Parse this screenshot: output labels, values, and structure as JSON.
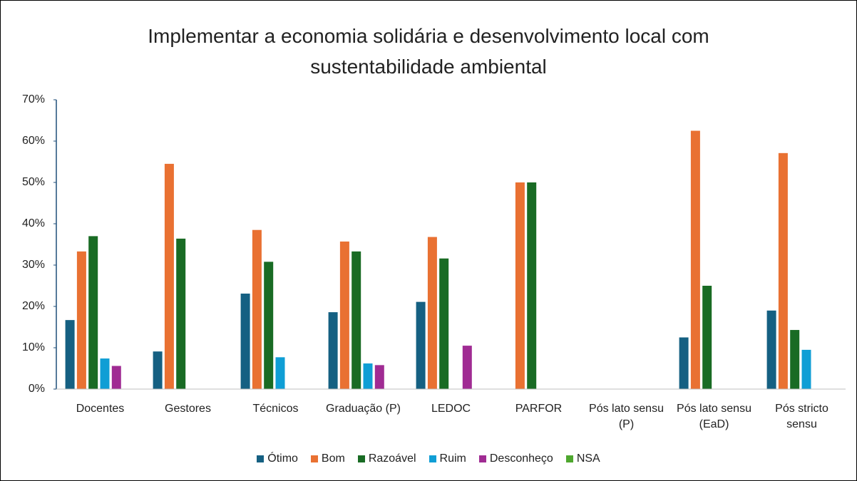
{
  "chart_data": {
    "type": "bar",
    "title": "Implementar a economia solidária e desenvolvimento local com sustentabilidade ambiental",
    "categories": [
      "Docentes",
      "Gestores",
      "Técnicos",
      "Graduação (P)",
      "LEDOC",
      "PARFOR",
      "Pós lato sensu (P)",
      "Pós lato sensu (EaD)",
      "Pós stricto sensu"
    ],
    "series": [
      {
        "name": "Ótimo",
        "color": "#156082",
        "values": [
          16.7,
          9.1,
          23.1,
          18.6,
          21.1,
          0,
          0,
          12.5,
          19.0
        ]
      },
      {
        "name": "Bom",
        "color": "#e97132",
        "values": [
          33.3,
          54.5,
          38.5,
          35.7,
          36.8,
          50,
          0,
          62.5,
          57.1
        ]
      },
      {
        "name": "Razoável",
        "color": "#196b24",
        "values": [
          37.0,
          36.4,
          30.8,
          33.3,
          31.6,
          50,
          0,
          25.0,
          14.3
        ]
      },
      {
        "name": "Ruim",
        "color": "#0f9ed5",
        "values": [
          7.4,
          0,
          7.7,
          6.2,
          0,
          0,
          0,
          0,
          9.5
        ]
      },
      {
        "name": "Desconheço",
        "color": "#a02b93",
        "values": [
          5.6,
          0,
          0,
          5.8,
          10.5,
          0,
          0,
          0,
          0
        ]
      },
      {
        "name": "NSA",
        "color": "#4ea72e",
        "values": [
          0,
          0,
          0,
          0,
          0,
          0,
          0,
          0,
          0
        ]
      }
    ],
    "ylim": [
      0,
      70
    ],
    "yticks": [
      {
        "value": 0,
        "label": "0%"
      },
      {
        "value": 10,
        "label": "10%"
      },
      {
        "value": 20,
        "label": "20%"
      },
      {
        "value": 30,
        "label": "30%"
      },
      {
        "value": 40,
        "label": "40%"
      },
      {
        "value": 50,
        "label": "50%"
      },
      {
        "value": 60,
        "label": "60%"
      },
      {
        "value": 70,
        "label": "70%"
      }
    ],
    "grid": false,
    "legend": "bottom"
  }
}
